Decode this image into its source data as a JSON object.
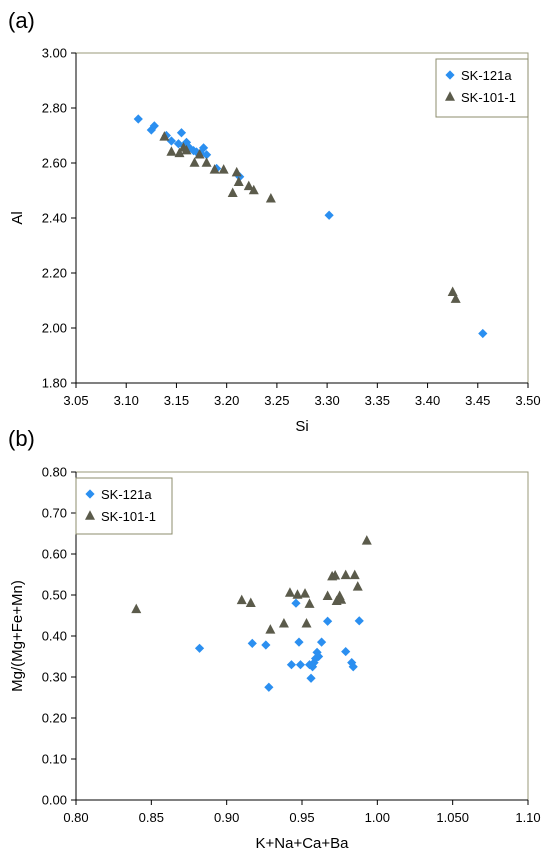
{
  "chart_data": [
    {
      "type": "scatter",
      "panel_label": "(a)",
      "xlabel": "Si",
      "ylabel": "Al",
      "xlim": [
        3.05,
        3.5
      ],
      "ylim": [
        1.8,
        3.0
      ],
      "xticks": [
        "3.05",
        "3.10",
        "3.15",
        "3.20",
        "3.25",
        "3.30",
        "3.35",
        "3.40",
        "3.45",
        "3.50"
      ],
      "yticks": [
        "1.80",
        "2.00",
        "2.20",
        "2.40",
        "2.60",
        "2.80",
        "3.00"
      ],
      "legend_position": "top-right",
      "series": [
        {
          "name": "SK-121a",
          "marker": "diamond",
          "color": "#2b8ff0",
          "points": [
            [
              3.112,
              2.76
            ],
            [
              3.125,
              2.72
            ],
            [
              3.128,
              2.735
            ],
            [
              3.14,
              2.7
            ],
            [
              3.145,
              2.68
            ],
            [
              3.152,
              2.67
            ],
            [
              3.155,
              2.71
            ],
            [
              3.158,
              2.66
            ],
            [
              3.16,
              2.675
            ],
            [
              3.163,
              2.655
            ],
            [
              3.167,
              2.645
            ],
            [
              3.17,
              2.64
            ],
            [
              3.174,
              2.635
            ],
            [
              3.177,
              2.655
            ],
            [
              3.18,
              2.63
            ],
            [
              3.19,
              2.58
            ],
            [
              3.213,
              2.55
            ],
            [
              3.302,
              2.41
            ],
            [
              3.455,
              1.98
            ]
          ]
        },
        {
          "name": "SK-101-1",
          "marker": "triangle",
          "color": "#5b5b4b",
          "points": [
            [
              3.138,
              2.695
            ],
            [
              3.145,
              2.64
            ],
            [
              3.153,
              2.635
            ],
            [
              3.157,
              2.655
            ],
            [
              3.16,
              2.645
            ],
            [
              3.168,
              2.6
            ],
            [
              3.173,
              2.63
            ],
            [
              3.18,
              2.6
            ],
            [
              3.188,
              2.575
            ],
            [
              3.197,
              2.575
            ],
            [
              3.206,
              2.49
            ],
            [
              3.21,
              2.565
            ],
            [
              3.212,
              2.53
            ],
            [
              3.222,
              2.515
            ],
            [
              3.227,
              2.5
            ],
            [
              3.244,
              2.47
            ],
            [
              3.425,
              2.13
            ],
            [
              3.428,
              2.105
            ]
          ]
        }
      ]
    },
    {
      "type": "scatter",
      "panel_label": "(b)",
      "xlabel": "K+Na+Ca+Ba",
      "ylabel": "Mg/(Mg+Fe+Mn)",
      "xlim": [
        0.8,
        1.1
      ],
      "ylim": [
        0.0,
        0.8
      ],
      "xticks": [
        "0.80",
        "0.85",
        "0.90",
        "0.95",
        "1.00",
        "1.050",
        "1.10"
      ],
      "yticks": [
        "0.00",
        "0.10",
        "0.20",
        "0.30",
        "0.40",
        "0.50",
        "0.60",
        "0.70",
        "0.80"
      ],
      "legend_position": "top-left",
      "series": [
        {
          "name": "SK-121a",
          "marker": "diamond",
          "color": "#2b8ff0",
          "points": [
            [
              0.882,
              0.37
            ],
            [
              0.917,
              0.382
            ],
            [
              0.926,
              0.378
            ],
            [
              0.928,
              0.275
            ],
            [
              0.943,
              0.33
            ],
            [
              0.946,
              0.48
            ],
            [
              0.948,
              0.385
            ],
            [
              0.949,
              0.33
            ],
            [
              0.955,
              0.33
            ],
            [
              0.956,
              0.297
            ],
            [
              0.957,
              0.325
            ],
            [
              0.958,
              0.335
            ],
            [
              0.959,
              0.345
            ],
            [
              0.96,
              0.36
            ],
            [
              0.961,
              0.35
            ],
            [
              0.963,
              0.385
            ],
            [
              0.967,
              0.436
            ],
            [
              0.979,
              0.362
            ],
            [
              0.983,
              0.335
            ],
            [
              0.984,
              0.325
            ],
            [
              0.988,
              0.437
            ]
          ]
        },
        {
          "name": "SK-101-1",
          "marker": "triangle",
          "color": "#5b5b4b",
          "points": [
            [
              0.84,
              0.465
            ],
            [
              0.91,
              0.487
            ],
            [
              0.916,
              0.48
            ],
            [
              0.929,
              0.415
            ],
            [
              0.938,
              0.43
            ],
            [
              0.942,
              0.505
            ],
            [
              0.947,
              0.5
            ],
            [
              0.952,
              0.503
            ],
            [
              0.953,
              0.43
            ],
            [
              0.955,
              0.478
            ],
            [
              0.967,
              0.497
            ],
            [
              0.97,
              0.545
            ],
            [
              0.972,
              0.547
            ],
            [
              0.973,
              0.485
            ],
            [
              0.975,
              0.497
            ],
            [
              0.976,
              0.488
            ],
            [
              0.979,
              0.548
            ],
            [
              0.985,
              0.548
            ],
            [
              0.987,
              0.52
            ],
            [
              0.993,
              0.632
            ]
          ]
        }
      ]
    }
  ]
}
